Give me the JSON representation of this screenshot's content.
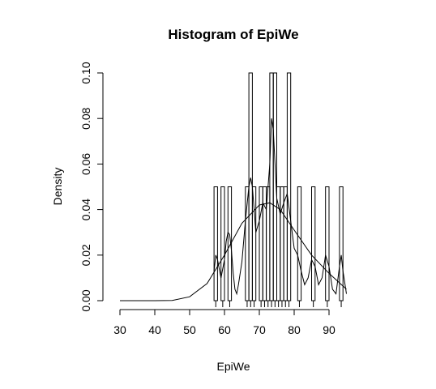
{
  "chart_data": {
    "type": "bar",
    "title": "Histogram of EpiWe",
    "xlabel": "EpiWe",
    "ylabel": "Density",
    "xlim": [
      30,
      95
    ],
    "ylim": [
      0,
      0.1
    ],
    "x_ticks": [
      "30",
      "40",
      "50",
      "60",
      "70",
      "80",
      "90"
    ],
    "y_ticks": [
      "0.00",
      "0.02",
      "0.04",
      "0.06",
      "0.08",
      "0.10"
    ],
    "bins": [
      {
        "x0": 57,
        "x1": 58,
        "density": 0.05
      },
      {
        "x0": 58,
        "x1": 59,
        "density": 0.0
      },
      {
        "x0": 59,
        "x1": 60,
        "density": 0.05
      },
      {
        "x0": 60,
        "x1": 61,
        "density": 0.0
      },
      {
        "x0": 61,
        "x1": 62,
        "density": 0.05
      },
      {
        "x0": 62,
        "x1": 63,
        "density": 0.0
      },
      {
        "x0": 63,
        "x1": 64,
        "density": 0.0
      },
      {
        "x0": 64,
        "x1": 65,
        "density": 0.0
      },
      {
        "x0": 65,
        "x1": 66,
        "density": 0.0
      },
      {
        "x0": 66,
        "x1": 67,
        "density": 0.05
      },
      {
        "x0": 67,
        "x1": 68,
        "density": 0.1
      },
      {
        "x0": 68,
        "x1": 69,
        "density": 0.05
      },
      {
        "x0": 69,
        "x1": 70,
        "density": 0.0
      },
      {
        "x0": 70,
        "x1": 71,
        "density": 0.05
      },
      {
        "x0": 71,
        "x1": 72,
        "density": 0.05
      },
      {
        "x0": 72,
        "x1": 73,
        "density": 0.05
      },
      {
        "x0": 73,
        "x1": 74,
        "density": 0.1
      },
      {
        "x0": 74,
        "x1": 75,
        "density": 0.1
      },
      {
        "x0": 75,
        "x1": 76,
        "density": 0.05
      },
      {
        "x0": 76,
        "x1": 77,
        "density": 0.05
      },
      {
        "x0": 77,
        "x1": 78,
        "density": 0.05
      },
      {
        "x0": 78,
        "x1": 79,
        "density": 0.1
      },
      {
        "x0": 79,
        "x1": 80,
        "density": 0.0
      },
      {
        "x0": 80,
        "x1": 81,
        "density": 0.0
      },
      {
        "x0": 81,
        "x1": 82,
        "density": 0.05
      },
      {
        "x0": 82,
        "x1": 83,
        "density": 0.0
      },
      {
        "x0": 83,
        "x1": 84,
        "density": 0.0
      },
      {
        "x0": 84,
        "x1": 85,
        "density": 0.0
      },
      {
        "x0": 85,
        "x1": 86,
        "density": 0.05
      },
      {
        "x0": 86,
        "x1": 87,
        "density": 0.0
      },
      {
        "x0": 87,
        "x1": 88,
        "density": 0.0
      },
      {
        "x0": 88,
        "x1": 89,
        "density": 0.0
      },
      {
        "x0": 89,
        "x1": 90,
        "density": 0.05
      },
      {
        "x0": 90,
        "x1": 91,
        "density": 0.0
      },
      {
        "x0": 91,
        "x1": 92,
        "density": 0.0
      },
      {
        "x0": 92,
        "x1": 93,
        "density": 0.0
      },
      {
        "x0": 93,
        "x1": 94,
        "density": 0.05
      }
    ],
    "rug": [
      57.5,
      59.5,
      61.5,
      66.5,
      67.5,
      68.5,
      70.5,
      71.5,
      72.5,
      73.5,
      74.5,
      75.5,
      76.5,
      77.5,
      78.5,
      81.5,
      85.5,
      89.5,
      93.5
    ],
    "series": [
      {
        "type": "line",
        "x": [
          57.0,
          57.5,
          58.0,
          59.0,
          60.0,
          60.5,
          61.0,
          61.5,
          62.0,
          62.5,
          63.0,
          63.5,
          64.0,
          65.0,
          66.0,
          67.0,
          67.5,
          68.0,
          68.5,
          69.0,
          70.0,
          71.0,
          72.0,
          73.0,
          73.5,
          74.0,
          74.5,
          75.0,
          76.0,
          77.0,
          78.0,
          79.0,
          80.0,
          81.0,
          82.0,
          83.0,
          84.0,
          85.0,
          86.0,
          87.0,
          88.0,
          89.0,
          90.0,
          91.0,
          92.0,
          93.0,
          93.5,
          94.0,
          95.0
        ],
        "y": [
          0.013,
          0.02,
          0.018,
          0.01,
          0.018,
          0.026,
          0.03,
          0.029,
          0.022,
          0.012,
          0.005,
          0.003,
          0.007,
          0.017,
          0.035,
          0.05,
          0.054,
          0.05,
          0.04,
          0.03,
          0.035,
          0.043,
          0.04,
          0.06,
          0.08,
          0.075,
          0.06,
          0.045,
          0.038,
          0.043,
          0.047,
          0.035,
          0.023,
          0.02,
          0.013,
          0.007,
          0.01,
          0.018,
          0.015,
          0.007,
          0.01,
          0.02,
          0.015,
          0.005,
          0.003,
          0.015,
          0.02,
          0.013,
          0.003
        ]
      },
      {
        "type": "line",
        "x": [
          30,
          40,
          45,
          50,
          55,
          60,
          65,
          70,
          73,
          76,
          80,
          85,
          90,
          95
        ],
        "y": [
          0.0,
          0.0,
          0.0001,
          0.0017,
          0.0075,
          0.02,
          0.034,
          0.042,
          0.043,
          0.04,
          0.031,
          0.02,
          0.012,
          0.005
        ]
      }
    ]
  }
}
